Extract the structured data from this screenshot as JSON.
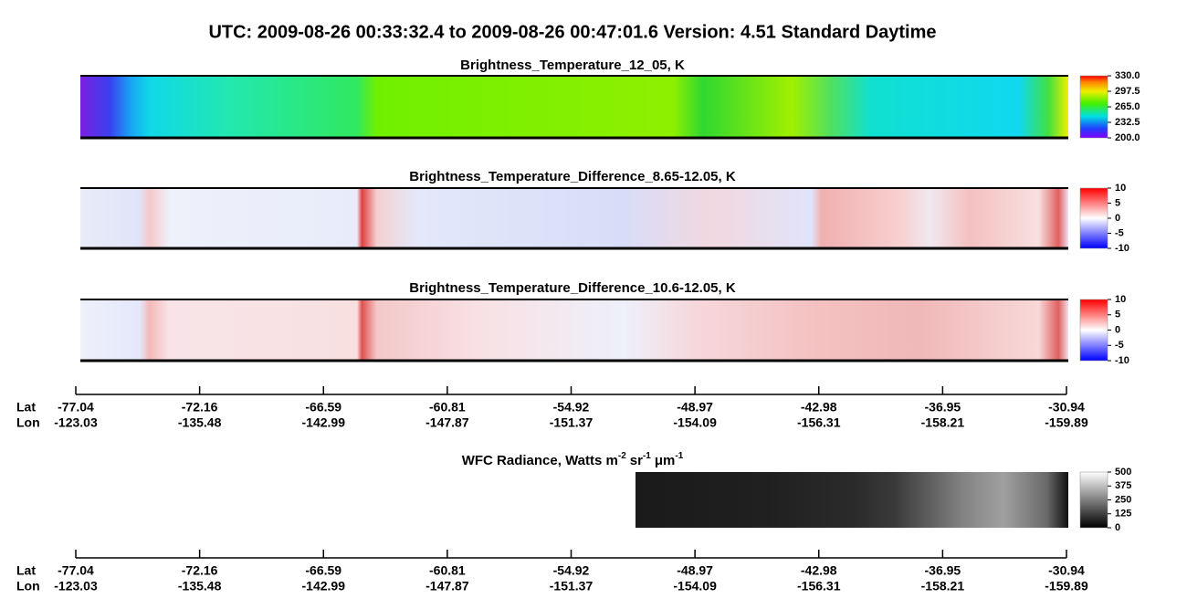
{
  "title": "UTC:  2009-08-26   00:33:32.4  to  2009-08-26   00:47:01.6    Version: 4.51  Standard Daytime",
  "panels": [
    {
      "title": "Brightness_Temperature_12_05, K",
      "colorbar_ticks": [
        "200.0",
        "232.5",
        "265.0",
        "297.5",
        "330.0"
      ]
    },
    {
      "title": "Brightness_Temperature_Difference_8.65-12.05, K",
      "colorbar_ticks": [
        "-10",
        "-5",
        "0",
        "5",
        "10"
      ]
    },
    {
      "title": "Brightness_Temperature_Difference_10.6-12.05, K",
      "colorbar_ticks": [
        "-10",
        "-5",
        "0",
        "5",
        "10"
      ]
    },
    {
      "title": [
        "WFC Radiance, Watts m",
        "-2",
        "sr",
        "-1",
        "μm",
        "-1"
      ],
      "colorbar_ticks": [
        "0",
        "125",
        "250",
        "375",
        "500"
      ]
    }
  ],
  "axes": [
    {
      "lat_header": "Lat",
      "lon_header": "Lon",
      "lat": [
        "-77.04",
        "-72.16",
        "-66.59",
        "-60.81",
        "-54.92",
        "-48.97",
        "-42.98",
        "-36.95",
        "-30.94"
      ],
      "lon": [
        "-123.03",
        "-135.48",
        "-142.99",
        "-147.87",
        "-151.37",
        "-154.09",
        "-156.31",
        "-158.21",
        "-159.89"
      ]
    },
    {
      "lat_header": "Lat",
      "lon_header": "Lon",
      "lat": [
        "-77.04",
        "-72.16",
        "-66.59",
        "-60.81",
        "-54.92",
        "-48.97",
        "-42.98",
        "-36.95",
        "-30.94"
      ],
      "lon": [
        "-123.03",
        "-135.48",
        "-142.99",
        "-147.87",
        "-151.37",
        "-154.09",
        "-156.31",
        "-158.21",
        "-159.89"
      ]
    }
  ]
}
